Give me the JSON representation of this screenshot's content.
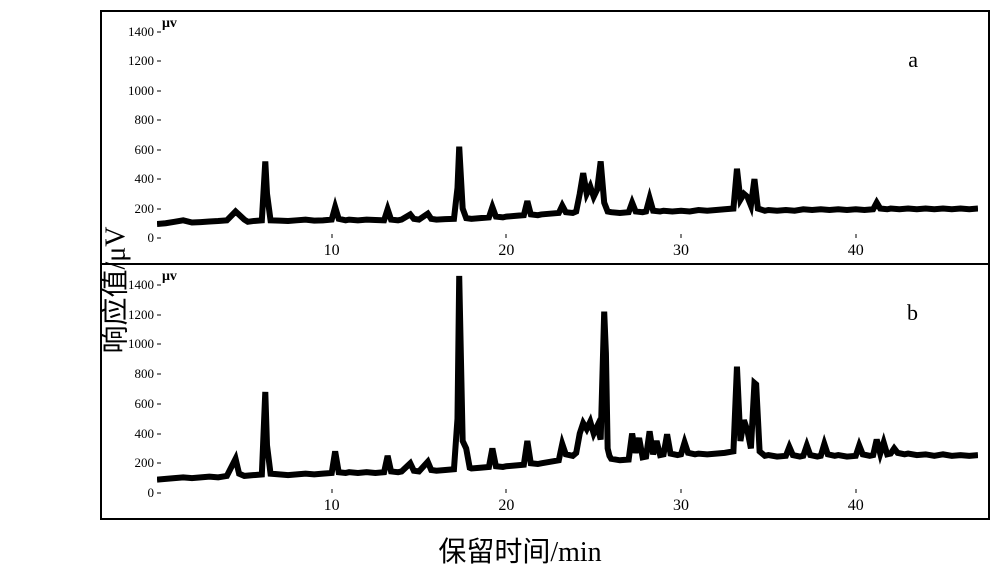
{
  "axis_labels": {
    "y_outer": "响应值/μV",
    "x_outer": "保留时间/min",
    "y_inner": "μv"
  },
  "colors": {
    "bg": "#ffffff",
    "line": "#000000",
    "border": "#000000",
    "text": "#000000"
  },
  "font": {
    "outer_label_size": 28,
    "inner_label_size": 14,
    "tick_size": 13,
    "panel_label_size": 22
  },
  "panel_a": {
    "label": "a",
    "type": "line",
    "xlim": [
      0,
      47
    ],
    "ylim": [
      0,
      1500
    ],
    "yticks": [
      0,
      200,
      400,
      600,
      800,
      1000,
      1200,
      1400
    ],
    "xticks": [
      10,
      20,
      30,
      40
    ],
    "line_color": "#000000",
    "line_width": 1.2,
    "data": [
      [
        0,
        95
      ],
      [
        0.5,
        100
      ],
      [
        1,
        110
      ],
      [
        1.5,
        120
      ],
      [
        2,
        105
      ],
      [
        2.5,
        108
      ],
      [
        3,
        112
      ],
      [
        3.5,
        115
      ],
      [
        4,
        120
      ],
      [
        4.5,
        180
      ],
      [
        5,
        125
      ],
      [
        5.2,
        110
      ],
      [
        5.5,
        115
      ],
      [
        6,
        120
      ],
      [
        6.2,
        520
      ],
      [
        6.3,
        300
      ],
      [
        6.5,
        120
      ],
      [
        7,
        118
      ],
      [
        7.5,
        115
      ],
      [
        8,
        120
      ],
      [
        8.5,
        125
      ],
      [
        9,
        118
      ],
      [
        9.5,
        120
      ],
      [
        10,
        125
      ],
      [
        10.2,
        210
      ],
      [
        10.4,
        130
      ],
      [
        10.8,
        120
      ],
      [
        11,
        125
      ],
      [
        11.5,
        120
      ],
      [
        12,
        125
      ],
      [
        12.5,
        122
      ],
      [
        13,
        120
      ],
      [
        13.2,
        195
      ],
      [
        13.4,
        125
      ],
      [
        13.8,
        120
      ],
      [
        14,
        125
      ],
      [
        14.5,
        160
      ],
      [
        14.7,
        130
      ],
      [
        15,
        125
      ],
      [
        15.5,
        165
      ],
      [
        15.7,
        130
      ],
      [
        16,
        125
      ],
      [
        16.5,
        128
      ],
      [
        17,
        130
      ],
      [
        17.2,
        340
      ],
      [
        17.3,
        620
      ],
      [
        17.5,
        200
      ],
      [
        17.7,
        135
      ],
      [
        18,
        130
      ],
      [
        18.5,
        135
      ],
      [
        19,
        140
      ],
      [
        19.2,
        210
      ],
      [
        19.4,
        145
      ],
      [
        19.8,
        140
      ],
      [
        20,
        145
      ],
      [
        20.5,
        150
      ],
      [
        21,
        155
      ],
      [
        21.2,
        250
      ],
      [
        21.4,
        160
      ],
      [
        21.8,
        155
      ],
      [
        22,
        160
      ],
      [
        22.5,
        165
      ],
      [
        23,
        170
      ],
      [
        23.2,
        220
      ],
      [
        23.4,
        175
      ],
      [
        23.8,
        170
      ],
      [
        24,
        180
      ],
      [
        24.2,
        300
      ],
      [
        24.4,
        440
      ],
      [
        24.6,
        300
      ],
      [
        24.8,
        350
      ],
      [
        25,
        280
      ],
      [
        25.2,
        330
      ],
      [
        25.4,
        520
      ],
      [
        25.6,
        240
      ],
      [
        25.8,
        180
      ],
      [
        26,
        175
      ],
      [
        26.5,
        170
      ],
      [
        27,
        175
      ],
      [
        27.2,
        240
      ],
      [
        27.4,
        180
      ],
      [
        27.8,
        175
      ],
      [
        28,
        180
      ],
      [
        28.2,
        270
      ],
      [
        28.4,
        185
      ],
      [
        28.8,
        180
      ],
      [
        29,
        185
      ],
      [
        29.5,
        180
      ],
      [
        30,
        185
      ],
      [
        30.5,
        180
      ],
      [
        31,
        190
      ],
      [
        31.5,
        185
      ],
      [
        32,
        190
      ],
      [
        32.5,
        195
      ],
      [
        33,
        200
      ],
      [
        33.2,
        470
      ],
      [
        33.4,
        260
      ],
      [
        33.6,
        300
      ],
      [
        33.8,
        280
      ],
      [
        34,
        220
      ],
      [
        34.2,
        400
      ],
      [
        34.4,
        200
      ],
      [
        34.8,
        185
      ],
      [
        35,
        190
      ],
      [
        35.5,
        185
      ],
      [
        36,
        190
      ],
      [
        36.5,
        185
      ],
      [
        37,
        195
      ],
      [
        37.5,
        190
      ],
      [
        38,
        195
      ],
      [
        38.5,
        190
      ],
      [
        39,
        195
      ],
      [
        39.5,
        190
      ],
      [
        40,
        195
      ],
      [
        40.5,
        190
      ],
      [
        41,
        195
      ],
      [
        41.2,
        240
      ],
      [
        41.4,
        200
      ],
      [
        41.8,
        195
      ],
      [
        42,
        200
      ],
      [
        42.5,
        195
      ],
      [
        43,
        200
      ],
      [
        43.5,
        195
      ],
      [
        44,
        200
      ],
      [
        44.5,
        195
      ],
      [
        45,
        200
      ],
      [
        45.5,
        195
      ],
      [
        46,
        200
      ],
      [
        46.5,
        195
      ],
      [
        47,
        200
      ]
    ]
  },
  "panel_b": {
    "label": "b",
    "type": "line",
    "xlim": [
      0,
      47
    ],
    "ylim": [
      0,
      1500
    ],
    "yticks": [
      0,
      200,
      400,
      600,
      800,
      1000,
      1200,
      1400
    ],
    "xticks": [
      10,
      20,
      30,
      40
    ],
    "line_color": "#000000",
    "line_width": 1.2,
    "data": [
      [
        0,
        90
      ],
      [
        0.5,
        95
      ],
      [
        1,
        100
      ],
      [
        1.5,
        105
      ],
      [
        2,
        100
      ],
      [
        2.5,
        105
      ],
      [
        3,
        110
      ],
      [
        3.5,
        105
      ],
      [
        4,
        115
      ],
      [
        4.5,
        230
      ],
      [
        4.7,
        130
      ],
      [
        5,
        115
      ],
      [
        5.5,
        120
      ],
      [
        6,
        125
      ],
      [
        6.2,
        680
      ],
      [
        6.3,
        320
      ],
      [
        6.5,
        130
      ],
      [
        7,
        125
      ],
      [
        7.5,
        120
      ],
      [
        8,
        125
      ],
      [
        8.5,
        130
      ],
      [
        9,
        125
      ],
      [
        9.5,
        130
      ],
      [
        10,
        135
      ],
      [
        10.2,
        280
      ],
      [
        10.4,
        140
      ],
      [
        10.8,
        135
      ],
      [
        11,
        140
      ],
      [
        11.5,
        135
      ],
      [
        12,
        140
      ],
      [
        12.5,
        135
      ],
      [
        13,
        140
      ],
      [
        13.2,
        250
      ],
      [
        13.4,
        145
      ],
      [
        13.8,
        140
      ],
      [
        14,
        145
      ],
      [
        14.5,
        200
      ],
      [
        14.7,
        150
      ],
      [
        15,
        145
      ],
      [
        15.5,
        210
      ],
      [
        15.7,
        155
      ],
      [
        16,
        150
      ],
      [
        16.5,
        155
      ],
      [
        17,
        160
      ],
      [
        17.2,
        500
      ],
      [
        17.3,
        1460
      ],
      [
        17.5,
        350
      ],
      [
        17.7,
        300
      ],
      [
        17.9,
        170
      ],
      [
        18,
        165
      ],
      [
        18.5,
        170
      ],
      [
        19,
        175
      ],
      [
        19.2,
        300
      ],
      [
        19.4,
        180
      ],
      [
        19.8,
        175
      ],
      [
        20,
        180
      ],
      [
        20.5,
        185
      ],
      [
        21,
        190
      ],
      [
        21.2,
        350
      ],
      [
        21.4,
        200
      ],
      [
        21.8,
        195
      ],
      [
        22,
        200
      ],
      [
        22.5,
        210
      ],
      [
        23,
        220
      ],
      [
        23.2,
        330
      ],
      [
        23.4,
        260
      ],
      [
        23.8,
        250
      ],
      [
        24,
        270
      ],
      [
        24.2,
        400
      ],
      [
        24.4,
        470
      ],
      [
        24.6,
        430
      ],
      [
        24.8,
        480
      ],
      [
        25,
        400
      ],
      [
        25.2,
        450
      ],
      [
        25.4,
        360
      ],
      [
        25.6,
        1220
      ],
      [
        25.7,
        940
      ],
      [
        25.8,
        300
      ],
      [
        25.9,
        250
      ],
      [
        26,
        230
      ],
      [
        26.5,
        220
      ],
      [
        27,
        225
      ],
      [
        27.2,
        400
      ],
      [
        27.4,
        270
      ],
      [
        27.6,
        370
      ],
      [
        27.8,
        240
      ],
      [
        28,
        245
      ],
      [
        28.2,
        415
      ],
      [
        28.4,
        260
      ],
      [
        28.6,
        350
      ],
      [
        28.8,
        255
      ],
      [
        29,
        260
      ],
      [
        29.2,
        395
      ],
      [
        29.4,
        265
      ],
      [
        29.8,
        255
      ],
      [
        30,
        260
      ],
      [
        30.2,
        340
      ],
      [
        30.4,
        270
      ],
      [
        30.8,
        260
      ],
      [
        31,
        265
      ],
      [
        31.5,
        260
      ],
      [
        32,
        265
      ],
      [
        32.5,
        270
      ],
      [
        33,
        280
      ],
      [
        33.2,
        850
      ],
      [
        33.4,
        350
      ],
      [
        33.6,
        490
      ],
      [
        33.8,
        420
      ],
      [
        34,
        300
      ],
      [
        34.2,
        740
      ],
      [
        34.3,
        730
      ],
      [
        34.5,
        280
      ],
      [
        34.8,
        250
      ],
      [
        35,
        255
      ],
      [
        35.5,
        245
      ],
      [
        36,
        250
      ],
      [
        36.2,
        310
      ],
      [
        36.4,
        255
      ],
      [
        36.8,
        245
      ],
      [
        37,
        250
      ],
      [
        37.2,
        320
      ],
      [
        37.4,
        255
      ],
      [
        37.8,
        245
      ],
      [
        38,
        250
      ],
      [
        38.2,
        330
      ],
      [
        38.4,
        260
      ],
      [
        38.8,
        250
      ],
      [
        39,
        255
      ],
      [
        39.5,
        245
      ],
      [
        40,
        250
      ],
      [
        40.2,
        320
      ],
      [
        40.4,
        260
      ],
      [
        40.8,
        250
      ],
      [
        41,
        255
      ],
      [
        41.2,
        360
      ],
      [
        41.4,
        265
      ],
      [
        41.6,
        340
      ],
      [
        41.8,
        260
      ],
      [
        42,
        265
      ],
      [
        42.2,
        300
      ],
      [
        42.4,
        270
      ],
      [
        42.8,
        260
      ],
      [
        43,
        265
      ],
      [
        43.5,
        255
      ],
      [
        44,
        260
      ],
      [
        44.5,
        250
      ],
      [
        45,
        260
      ],
      [
        45.5,
        250
      ],
      [
        46,
        255
      ],
      [
        46.5,
        250
      ],
      [
        47,
        255
      ]
    ]
  }
}
